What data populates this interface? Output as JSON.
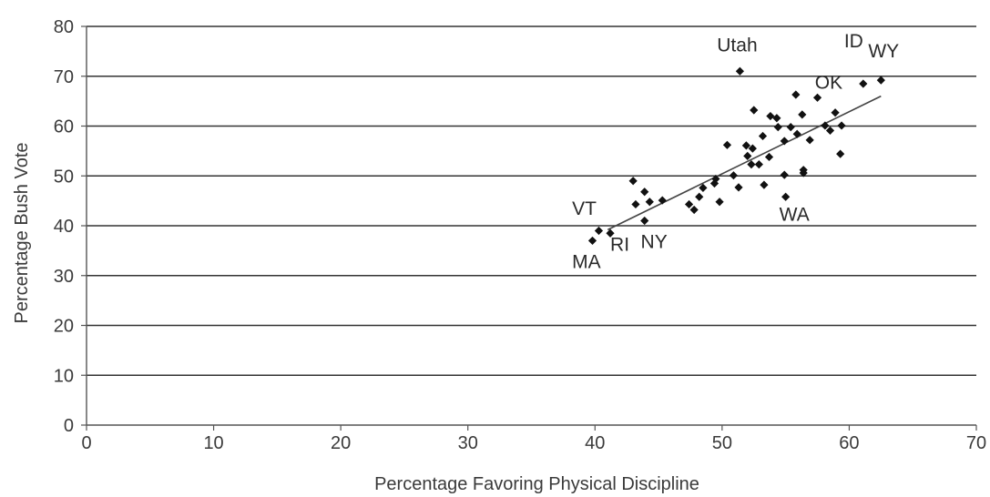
{
  "chart_data": {
    "type": "scatter",
    "xlabel": "Percentage Favoring Physical Discipline",
    "ylabel": "Percentage Bush Vote",
    "xlim": [
      0,
      70
    ],
    "ylim": [
      0,
      80
    ],
    "x_ticks": [
      0,
      10,
      20,
      30,
      40,
      50,
      60,
      70
    ],
    "y_ticks": [
      0,
      10,
      20,
      30,
      40,
      50,
      60,
      70,
      80
    ],
    "grid": "horizontal",
    "colors": {
      "points": "#111111",
      "grid": "#333333",
      "axis": "#555555",
      "trendline": "#444444"
    },
    "points": [
      {
        "x": 40.3,
        "y": 39.0
      },
      {
        "x": 41.2,
        "y": 38.5
      },
      {
        "x": 39.8,
        "y": 37.0
      },
      {
        "x": 43.0,
        "y": 49.0
      },
      {
        "x": 43.2,
        "y": 44.3
      },
      {
        "x": 43.9,
        "y": 46.8
      },
      {
        "x": 44.3,
        "y": 44.8
      },
      {
        "x": 43.9,
        "y": 41.0
      },
      {
        "x": 45.3,
        "y": 45.1
      },
      {
        "x": 47.4,
        "y": 44.3
      },
      {
        "x": 47.8,
        "y": 43.2
      },
      {
        "x": 48.2,
        "y": 45.8
      },
      {
        "x": 48.5,
        "y": 47.6
      },
      {
        "x": 49.4,
        "y": 48.5
      },
      {
        "x": 49.5,
        "y": 49.4
      },
      {
        "x": 49.8,
        "y": 44.8
      },
      {
        "x": 50.4,
        "y": 56.2
      },
      {
        "x": 50.9,
        "y": 50.1
      },
      {
        "x": 51.3,
        "y": 47.7
      },
      {
        "x": 51.4,
        "y": 71.0
      },
      {
        "x": 51.9,
        "y": 56.1
      },
      {
        "x": 52.0,
        "y": 54.0
      },
      {
        "x": 52.3,
        "y": 52.3
      },
      {
        "x": 52.4,
        "y": 55.5
      },
      {
        "x": 52.5,
        "y": 63.2
      },
      {
        "x": 52.9,
        "y": 52.3
      },
      {
        "x": 53.2,
        "y": 58.0
      },
      {
        "x": 53.3,
        "y": 48.2
      },
      {
        "x": 53.7,
        "y": 53.8
      },
      {
        "x": 53.8,
        "y": 62.0
      },
      {
        "x": 54.3,
        "y": 61.6
      },
      {
        "x": 54.4,
        "y": 59.8
      },
      {
        "x": 54.9,
        "y": 57.0
      },
      {
        "x": 54.9,
        "y": 50.2
      },
      {
        "x": 55.0,
        "y": 45.8
      },
      {
        "x": 55.4,
        "y": 59.8
      },
      {
        "x": 55.8,
        "y": 66.3
      },
      {
        "x": 55.9,
        "y": 58.4
      },
      {
        "x": 56.3,
        "y": 62.3
      },
      {
        "x": 56.4,
        "y": 50.6
      },
      {
        "x": 56.4,
        "y": 51.2
      },
      {
        "x": 56.9,
        "y": 57.2
      },
      {
        "x": 57.5,
        "y": 65.7
      },
      {
        "x": 58.1,
        "y": 60.1
      },
      {
        "x": 58.5,
        "y": 59.1
      },
      {
        "x": 58.9,
        "y": 62.7
      },
      {
        "x": 59.3,
        "y": 54.4
      },
      {
        "x": 59.4,
        "y": 60.1
      },
      {
        "x": 61.1,
        "y": 68.5
      },
      {
        "x": 62.5,
        "y": 69.2
      }
    ],
    "trendline": {
      "from": {
        "x": 41.0,
        "y": 39.2
      },
      "to": {
        "x": 62.5,
        "y": 66.0
      }
    },
    "annotations": [
      {
        "text": "Utah",
        "x": 49.6,
        "y": 75.0
      },
      {
        "text": "ID",
        "x": 59.6,
        "y": 75.8
      },
      {
        "text": "WY",
        "x": 61.5,
        "y": 73.8
      },
      {
        "text": "OK",
        "x": 57.3,
        "y": 67.5
      },
      {
        "text": "VT",
        "x": 38.2,
        "y": 42.2
      },
      {
        "text": "RI",
        "x": 41.2,
        "y": 35.0
      },
      {
        "text": "NY",
        "x": 43.6,
        "y": 35.5
      },
      {
        "text": "MA",
        "x": 38.2,
        "y": 31.5
      },
      {
        "text": "WA",
        "x": 54.5,
        "y": 41.0
      }
    ]
  }
}
